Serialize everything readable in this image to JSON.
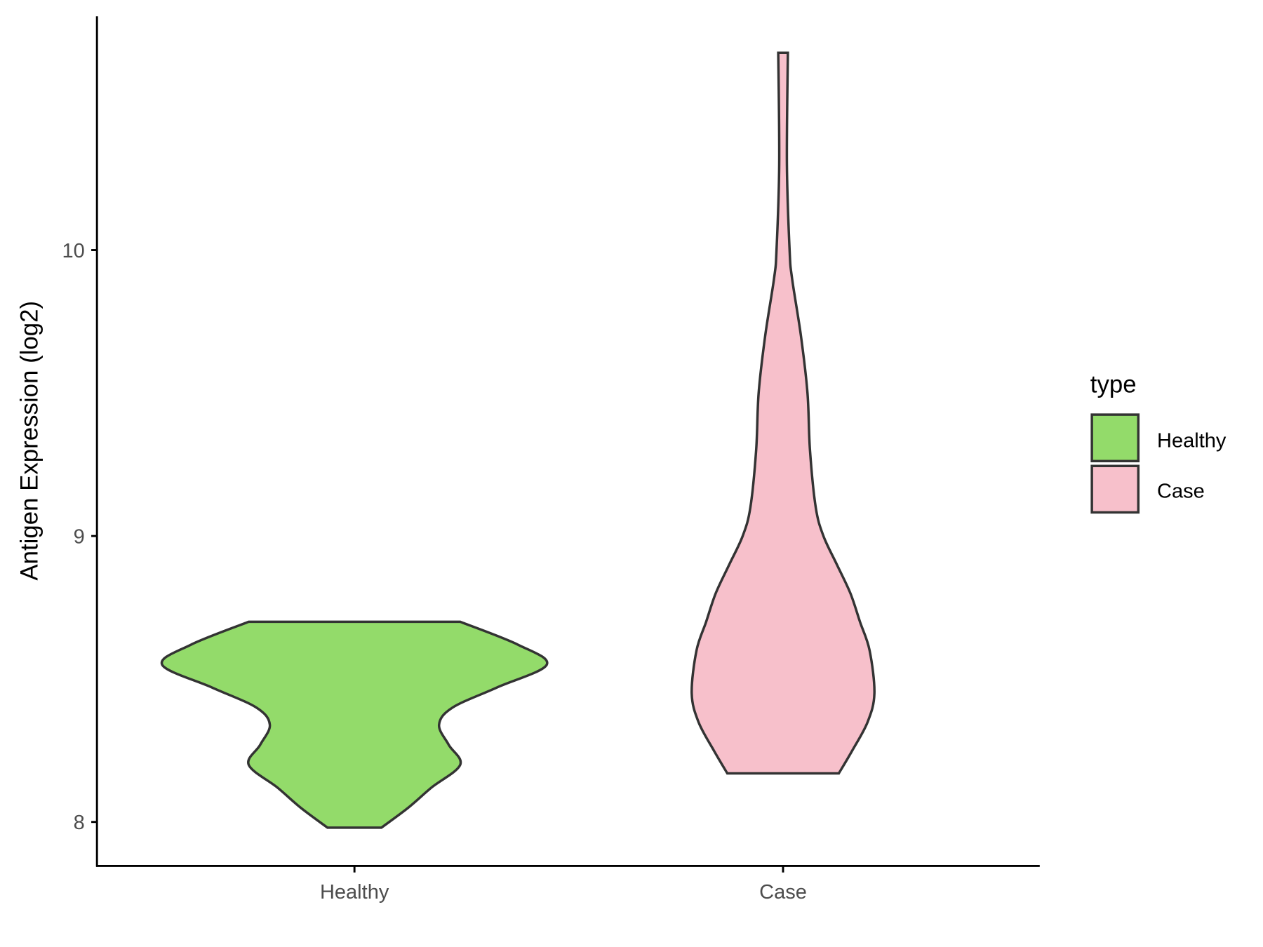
{
  "chart_data": {
    "type": "violin",
    "title": "",
    "xlabel": "",
    "ylabel": "Antigen Expression (log2)",
    "categories": [
      "Healthy",
      "Case"
    ],
    "ylim": [
      7.85,
      10.82
    ],
    "yticks": [
      8,
      9,
      10
    ],
    "ytick_labels": [
      "8",
      "9",
      "10"
    ],
    "grid": false,
    "legend": {
      "title": "type",
      "placement": "right",
      "entries": [
        {
          "label": "Healthy",
          "color": "#93DB6A"
        },
        {
          "label": "Case",
          "color": "#F7C0CB"
        }
      ]
    },
    "series": [
      {
        "category": "Healthy",
        "color": "#93DB6A",
        "min": 7.98,
        "max": 8.7,
        "density_profile": [
          [
            8.7,
            0.55
          ],
          [
            8.62,
            0.85
          ],
          [
            8.55,
            1.0
          ],
          [
            8.47,
            0.74
          ],
          [
            8.4,
            0.51
          ],
          [
            8.34,
            0.44
          ],
          [
            8.27,
            0.49
          ],
          [
            8.2,
            0.55
          ],
          [
            8.12,
            0.4
          ],
          [
            8.05,
            0.28
          ],
          [
            7.98,
            0.14
          ]
        ]
      },
      {
        "category": "Case",
        "color": "#F7C0CB",
        "min": 8.17,
        "max": 10.69,
        "density_profile": [
          [
            10.69,
            0.025
          ],
          [
            10.3,
            0.02
          ],
          [
            10.0,
            0.034
          ],
          [
            9.9,
            0.047
          ],
          [
            9.7,
            0.093
          ],
          [
            9.5,
            0.127
          ],
          [
            9.3,
            0.14
          ],
          [
            9.1,
            0.17
          ],
          [
            9.0,
            0.21
          ],
          [
            8.9,
            0.28
          ],
          [
            8.8,
            0.35
          ],
          [
            8.7,
            0.4
          ],
          [
            8.6,
            0.45
          ],
          [
            8.45,
            0.475
          ],
          [
            8.35,
            0.44
          ],
          [
            8.25,
            0.36
          ],
          [
            8.17,
            0.29
          ]
        ]
      }
    ],
    "outline_color": "#333333"
  }
}
